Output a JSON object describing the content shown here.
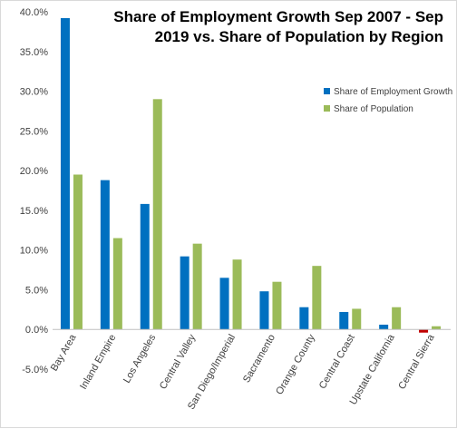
{
  "chart_data": {
    "type": "bar",
    "title_line1": "Share of Employment Growth Sep 2007 - Sep",
    "title_line2": "2019 vs. Share of Population by Region",
    "categories": [
      "Bay Area",
      "Inland Empire",
      "Los Angeles",
      "Central Valley",
      "San Diego/Imperial",
      "Sacramento",
      "Orange County",
      "Central Coast",
      "Upstate California",
      "Central Sierra"
    ],
    "series": [
      {
        "name": "Share of Employment Growth",
        "color": "#0070c0",
        "values": [
          39.2,
          18.8,
          15.8,
          9.2,
          6.5,
          4.8,
          2.8,
          2.2,
          0.6,
          -0.4
        ]
      },
      {
        "name": "Share of Population",
        "color": "#9bbb59",
        "values": [
          19.5,
          11.5,
          29.0,
          10.8,
          8.8,
          6.0,
          8.0,
          2.6,
          2.8,
          0.4
        ]
      }
    ],
    "yticks": [
      "-5.0%",
      "0.0%",
      "5.0%",
      "10.0%",
      "15.0%",
      "20.0%",
      "25.0%",
      "30.0%",
      "35.0%",
      "40.0%"
    ],
    "ylim": [
      -5,
      40
    ],
    "legend_position": "top-right",
    "negative_color": "#c00000",
    "grid": false
  }
}
